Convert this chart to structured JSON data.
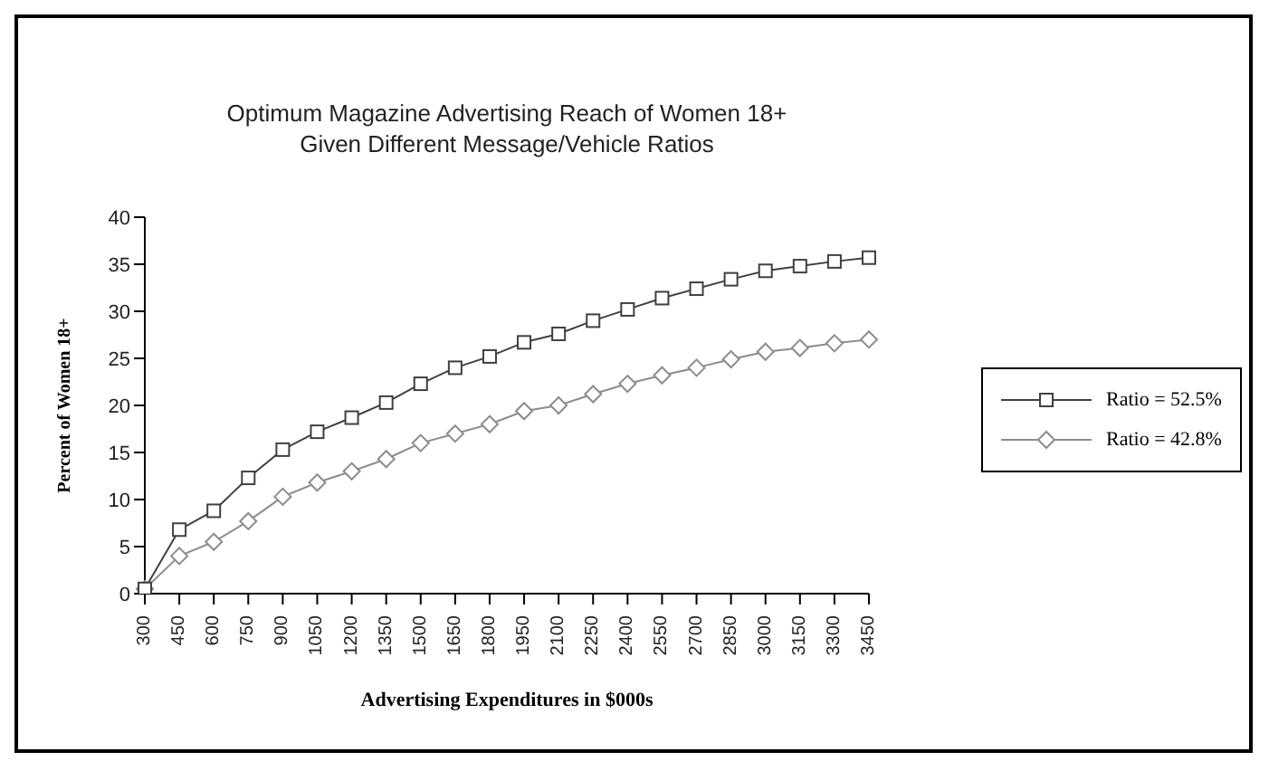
{
  "chart_data": {
    "type": "line",
    "title": "Optimum Magazine Advertising Reach of Women 18+",
    "subtitle": "Given Different Message/Vehicle Ratios",
    "xlabel": "Advertising Expenditures in $000s",
    "ylabel": "Percent of Women 18+",
    "categories": [
      "300",
      "450",
      "600",
      "750",
      "900",
      "1050",
      "1200",
      "1350",
      "1500",
      "1650",
      "1800",
      "1950",
      "2100",
      "2250",
      "2400",
      "2550",
      "2700",
      "2850",
      "3000",
      "3150",
      "3300",
      "3450"
    ],
    "series": [
      {
        "name": "Ratio = 52.5%",
        "color": "#404040",
        "marker": "square",
        "values": [
          0.5,
          6.8,
          8.8,
          12.3,
          15.3,
          17.2,
          18.7,
          20.3,
          22.3,
          24,
          25.2,
          26.7,
          27.6,
          29,
          30.2,
          31.4,
          32.4,
          33.4,
          34.3,
          34.8,
          35.3,
          35.7
        ]
      },
      {
        "name": "Ratio = 42.8%",
        "color": "#8c8c8c",
        "marker": "diamond",
        "values": [
          0.5,
          4,
          5.5,
          7.7,
          10.3,
          11.8,
          13,
          14.3,
          16,
          17,
          18,
          19.4,
          20,
          21.2,
          22.3,
          23.2,
          24,
          24.9,
          25.7,
          26.1,
          26.6,
          27
        ]
      }
    ],
    "ylim": [
      0,
      40
    ],
    "yticks": [
      0,
      5,
      10,
      15,
      20,
      25,
      30,
      35,
      40
    ],
    "grid": false,
    "legend": "right",
    "line_style": "solid"
  }
}
